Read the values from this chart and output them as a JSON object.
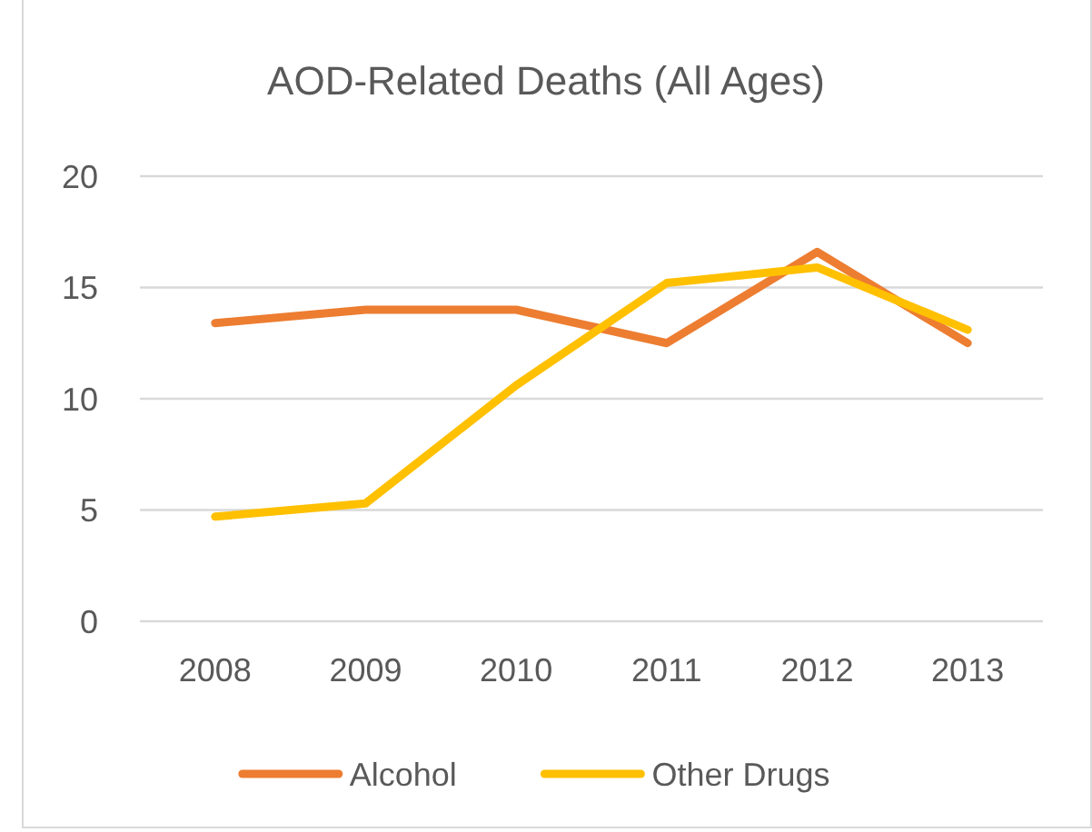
{
  "chart_data": {
    "type": "line",
    "title": "AOD-Related Deaths (All Ages)",
    "categories": [
      "2008",
      "2009",
      "2010",
      "2011",
      "2012",
      "2013"
    ],
    "series": [
      {
        "name": "Alcohol",
        "color": "#ed7d31",
        "values": [
          13.4,
          14.0,
          14.0,
          12.5,
          16.6,
          12.5
        ]
      },
      {
        "name": "Other Drugs",
        "color": "#ffc000",
        "values": [
          4.7,
          5.3,
          10.6,
          15.2,
          15.9,
          13.1
        ]
      }
    ],
    "ylim": [
      0,
      20
    ],
    "yticks": [
      0,
      5,
      10,
      15,
      20
    ],
    "grid": "y",
    "legend": "bottom"
  }
}
